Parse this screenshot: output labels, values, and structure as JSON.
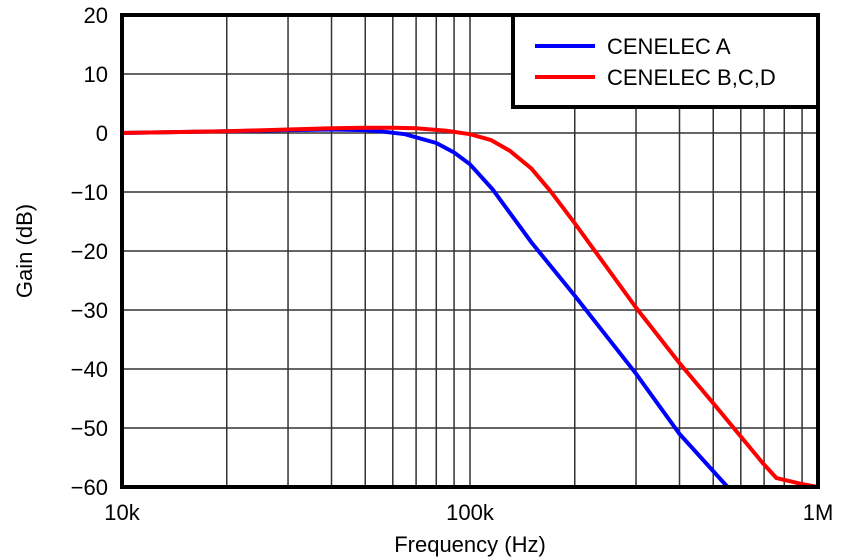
{
  "chart_data": {
    "type": "line",
    "xlabel": "Frequency (Hz)",
    "ylabel": "Gain (dB)",
    "xscale": "log",
    "xlim": [
      10000,
      1000000
    ],
    "ylim": [
      -60,
      20
    ],
    "x_tick_labels": [
      {
        "value": 10000,
        "label": "10k"
      },
      {
        "value": 100000,
        "label": "100k"
      },
      {
        "value": 1000000,
        "label": "1M"
      }
    ],
    "y_ticks": [
      20,
      10,
      0,
      -10,
      -20,
      -30,
      -40,
      -50,
      -60
    ],
    "y_tick_labels": [
      "20",
      "10",
      "0",
      "−10",
      "−20",
      "−30",
      "−40",
      "−50",
      "−60"
    ],
    "grid": true,
    "legend_position": "top-right",
    "series": [
      {
        "name": "CENELEC A",
        "color": "#0000ff",
        "x": [
          10000,
          20000,
          30000,
          40000,
          50000,
          55000,
          65000,
          80000,
          90000,
          100000,
          116000,
          150000,
          200000,
          300000,
          400000,
          500000,
          550000
        ],
        "y": [
          0,
          0.3,
          0.5,
          0.6,
          0.5,
          0.3,
          -0.2,
          -1.7,
          -3.3,
          -5.3,
          -9.5,
          -18.5,
          -27.6,
          -40.8,
          -51,
          -57.3,
          -60
        ]
      },
      {
        "name": "CENELEC B,C,D",
        "color": "#ff0000",
        "x": [
          10000,
          20000,
          30000,
          40000,
          50000,
          60000,
          70000,
          85000,
          100000,
          115000,
          130000,
          150000,
          170000,
          200000,
          300000,
          400000,
          500000,
          695000,
          760000,
          900000,
          1000000
        ],
        "y": [
          0,
          0.3,
          0.6,
          0.8,
          0.9,
          0.9,
          0.8,
          0.4,
          -0.2,
          -1.2,
          -3,
          -6,
          -9.8,
          -15.3,
          -29.6,
          -39,
          -45.8,
          -56,
          -58.5,
          -59.5,
          -60
        ]
      }
    ]
  }
}
